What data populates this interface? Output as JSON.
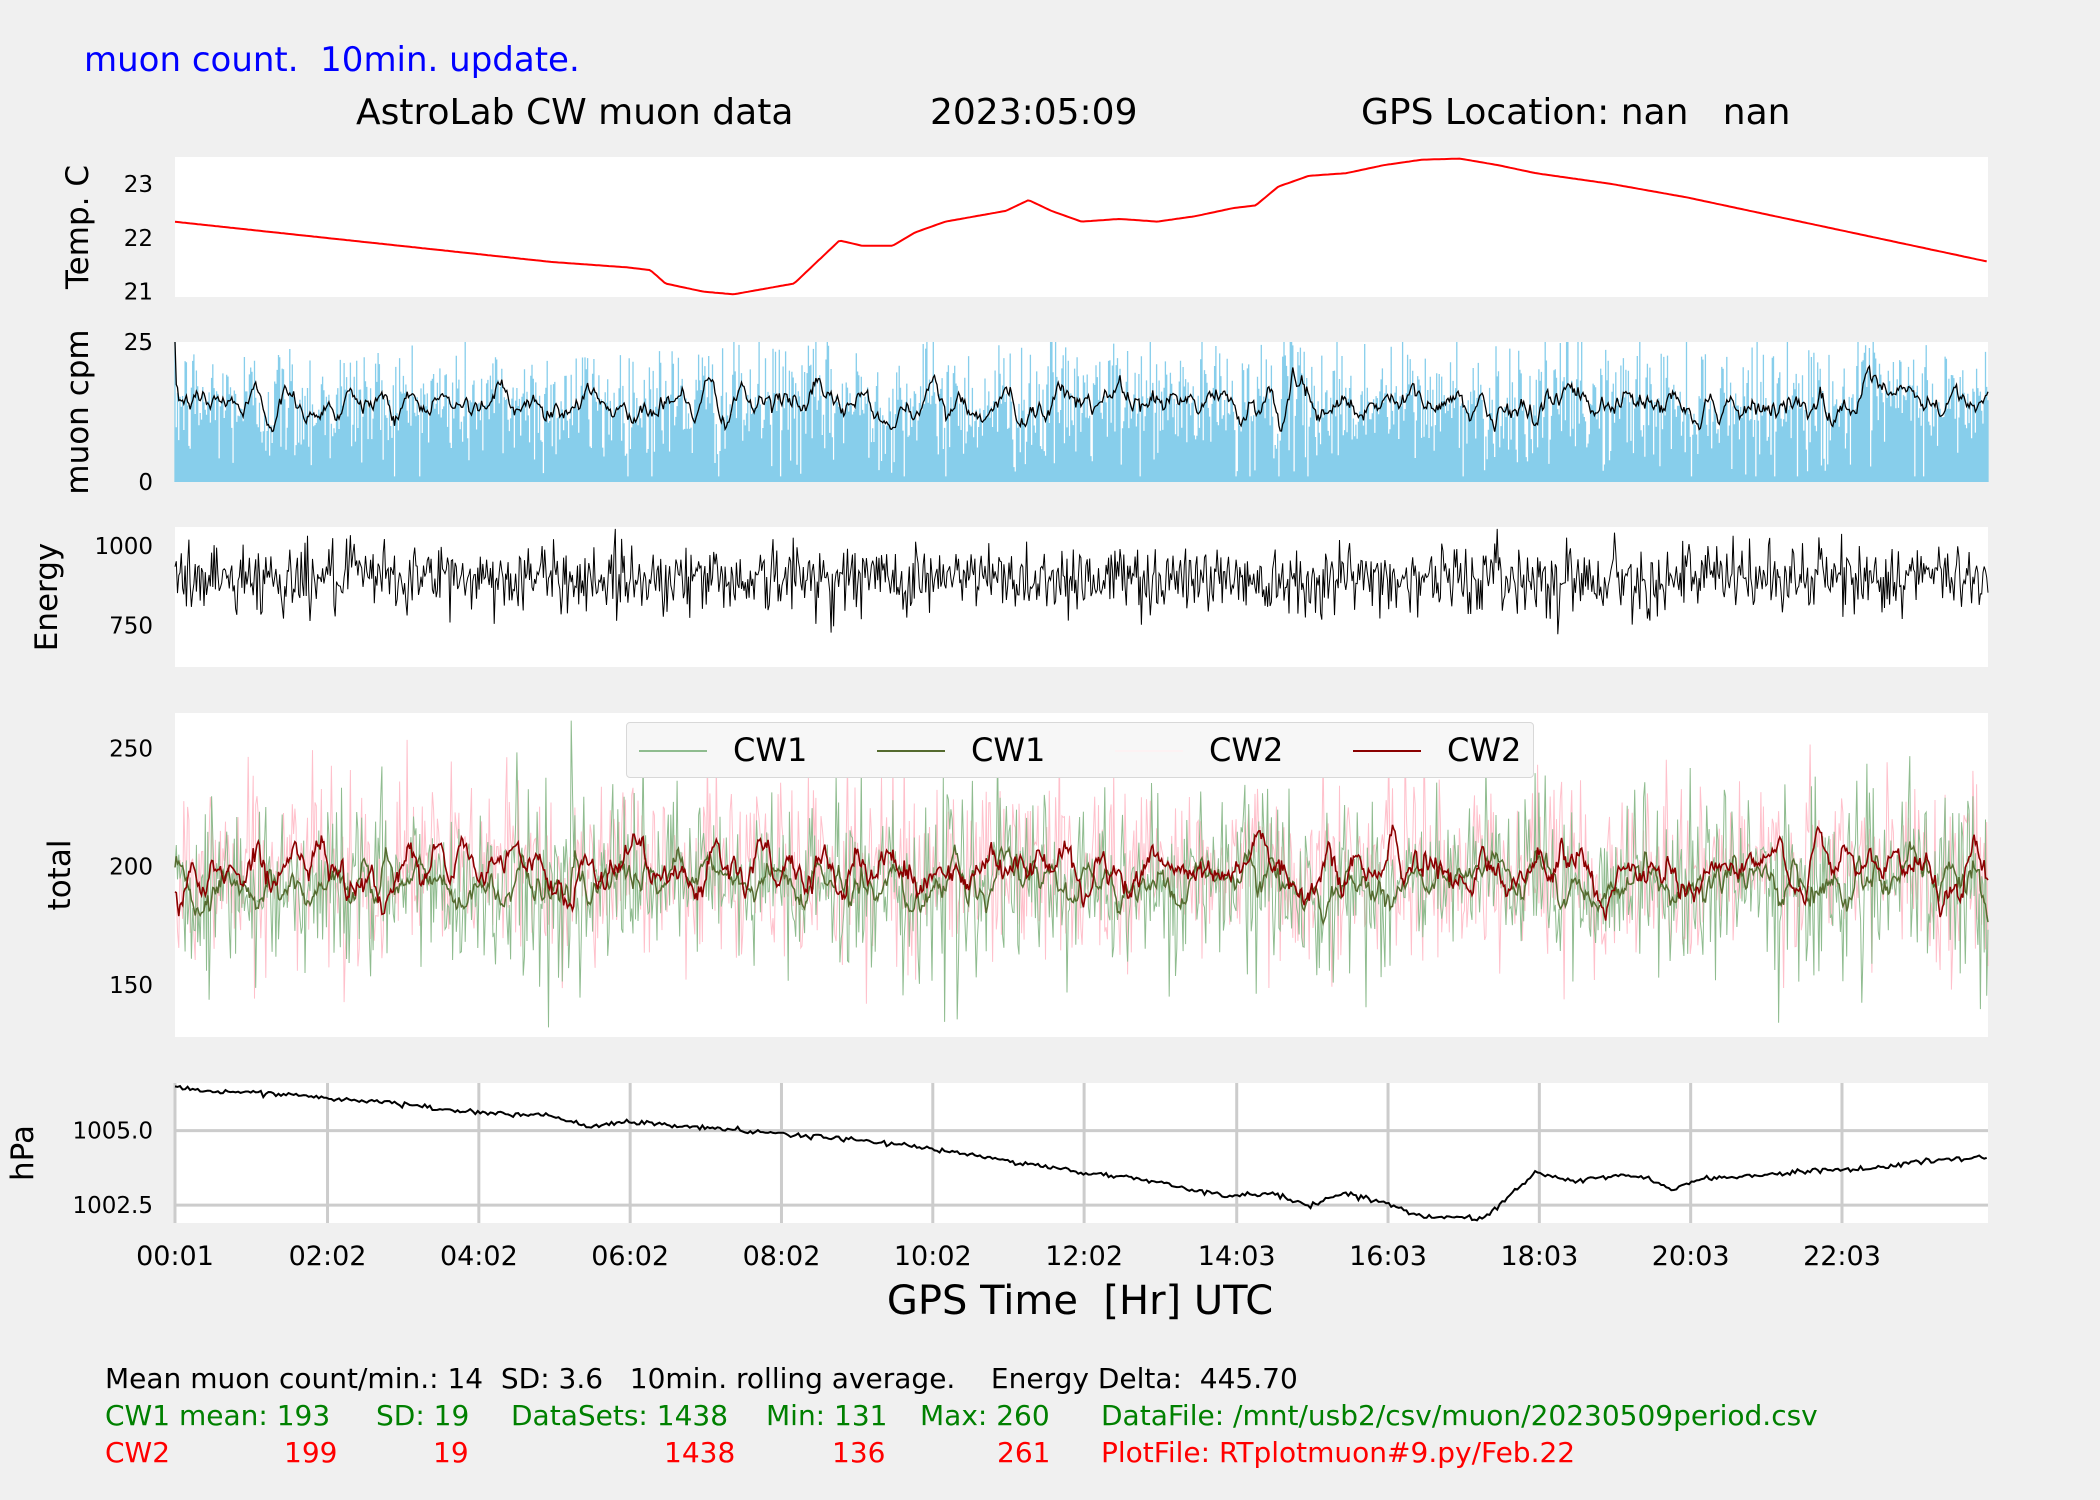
{
  "header": {
    "subtitle": "muon count.  10min. update.",
    "title_left": "AstroLab CW muon data",
    "date": "2023:05:09",
    "gps_location": "GPS Location: nan   nan"
  },
  "colors": {
    "background": "#f0f0f0",
    "panel": "#ffffff",
    "header_blue": "#0000ff",
    "temp_line": "#ff0000",
    "muon_bars": "#87ceeb",
    "cw1_light": "#8fbc8f",
    "cw1_dark": "#556b2f",
    "cw2_light": "#ffc0cb",
    "cw2_dark": "#8b0000",
    "stats_green": "#008000",
    "stats_red": "#ff0000"
  },
  "chart_data": {
    "type": "line",
    "xlabel": "GPS Time  [Hr] UTC",
    "x_tick_labels": [
      "00:01",
      "02:02",
      "04:02",
      "06:02",
      "08:02",
      "10:02",
      "12:02",
      "14:03",
      "16:03",
      "18:03",
      "20:03",
      "22:03"
    ],
    "x_ticks_hours": [
      0.017,
      2.033,
      4.033,
      6.033,
      8.033,
      10.033,
      12.033,
      14.05,
      16.05,
      18.05,
      20.05,
      22.05
    ],
    "x_range_hours": [
      0.017,
      23.98
    ],
    "panels": [
      {
        "id": "temp",
        "ylabel": "Temp. C",
        "ylim": [
          20.9,
          23.5
        ],
        "yticks": [
          21,
          22,
          23
        ],
        "ytick_labels": [
          "21",
          "22",
          "23"
        ],
        "grid": false,
        "series": [
          {
            "color": "#ff0000",
            "x": [
              0.0,
              1.0,
              2.0,
              3.0,
              4.0,
              5.0,
              6.0,
              6.3,
              6.5,
              7.0,
              7.4,
              7.8,
              8.2,
              8.5,
              8.8,
              9.1,
              9.5,
              9.8,
              10.2,
              10.6,
              11.0,
              11.3,
              11.6,
              12.0,
              12.5,
              13.0,
              13.5,
              14.0,
              14.3,
              14.6,
              15.0,
              15.5,
              16.0,
              16.5,
              17.0,
              17.5,
              18.0,
              19.0,
              20.0,
              21.0,
              22.0,
              23.0,
              24.0
            ],
            "y": [
              22.3,
              22.15,
              22.0,
              21.85,
              21.7,
              21.55,
              21.45,
              21.4,
              21.15,
              21.0,
              20.95,
              21.05,
              21.15,
              21.55,
              21.95,
              21.85,
              21.85,
              22.1,
              22.3,
              22.4,
              22.5,
              22.7,
              22.5,
              22.3,
              22.35,
              22.3,
              22.4,
              22.55,
              22.6,
              22.95,
              23.15,
              23.2,
              23.35,
              23.45,
              23.47,
              23.35,
              23.2,
              23.0,
              22.75,
              22.45,
              22.15,
              21.85,
              21.55
            ]
          }
        ]
      },
      {
        "id": "muon",
        "ylabel": "muon cpm",
        "ylim": [
          0,
          25
        ],
        "yticks": [
          0,
          25
        ],
        "ytick_labels": [
          "0",
          "25"
        ],
        "grid": false,
        "mean": 14,
        "sd": 3.6,
        "count": 1438,
        "bar_color": "#87ceeb",
        "rolling_color": "#000000"
      },
      {
        "id": "energy",
        "ylabel": "Energy",
        "ylim": [
          620,
          1060
        ],
        "yticks": [
          750,
          1000
        ],
        "ytick_labels": [
          "750",
          "1000"
        ],
        "grid": false,
        "mean": 900,
        "noise": 55,
        "count": 1438,
        "line_color": "#000000"
      },
      {
        "id": "total",
        "ylabel": "total",
        "ylim": [
          128,
          265
        ],
        "yticks": [
          150,
          200,
          250
        ],
        "ytick_labels": [
          "150",
          "200",
          "250"
        ],
        "grid": false,
        "legend_position": "top-center",
        "series": [
          {
            "name": "CW1",
            "role": "raw",
            "color": "#8fbc8f",
            "mean": 193,
            "sd": 19,
            "min": 131,
            "max": 260,
            "count": 1438
          },
          {
            "name": "CW1",
            "role": "rolling",
            "color": "#556b2f",
            "mean": 193
          },
          {
            "name": "CW2",
            "role": "raw",
            "color": "#ffc0cb",
            "mean": 199,
            "sd": 19,
            "min": 136,
            "max": 261,
            "count": 1438
          },
          {
            "name": "CW2",
            "role": "rolling",
            "color": "#8b0000",
            "mean": 199
          }
        ]
      },
      {
        "id": "pressure",
        "ylabel": "hPa",
        "ylim": [
          1001.9,
          1006.6
        ],
        "yticks": [
          1002.5,
          1005.0
        ],
        "ytick_labels": [
          "1002.5",
          "1005.0"
        ],
        "grid": true,
        "series": [
          {
            "color": "#000000",
            "x": [
              0.0,
              0.5,
              1.0,
              2.0,
              3.0,
              4.0,
              5.0,
              5.5,
              6.0,
              7.0,
              8.0,
              9.0,
              10.0,
              11.0,
              12.0,
              13.0,
              13.5,
              14.0,
              14.5,
              15.0,
              15.5,
              16.0,
              16.5,
              17.0,
              17.3,
              17.6,
              18.0,
              18.5,
              19.0,
              19.5,
              19.8,
              20.2,
              21.0,
              22.0,
              22.5,
              23.0,
              24.0
            ],
            "y": [
              1006.5,
              1006.3,
              1006.3,
              1006.1,
              1005.9,
              1005.6,
              1005.5,
              1005.1,
              1005.3,
              1005.1,
              1004.9,
              1004.7,
              1004.4,
              1004.0,
              1003.6,
              1003.3,
              1003.0,
              1002.8,
              1002.9,
              1002.5,
              1002.9,
              1002.6,
              1002.1,
              1002.1,
              1002.0,
              1002.7,
              1003.6,
              1003.3,
              1003.5,
              1003.4,
              1003.0,
              1003.4,
              1003.5,
              1003.7,
              1003.7,
              1004.0,
              1004.1
            ]
          }
        ]
      }
    ],
    "legend": [
      "CW1",
      "CW1",
      "CW2",
      "CW2"
    ]
  },
  "stats": {
    "line1": "Mean muon count/min.: 14  SD: 3.6   10min. rolling average.    Energy Delta:  445.70",
    "cw1": {
      "label": "CW1 mean: 193",
      "sd": "SD: 19",
      "datasets": "DataSets: 1438",
      "min": "Min: 131",
      "max": "Max: 260",
      "file": "DataFile: /mnt/usb2/csv/muon/20230509period.csv"
    },
    "cw2": {
      "label": "CW2",
      "mean": "199",
      "sd": "19",
      "datasets": "1438",
      "min": "136",
      "max": "261",
      "file": "PlotFile: RTplotmuon#9.py/Feb.22"
    }
  }
}
